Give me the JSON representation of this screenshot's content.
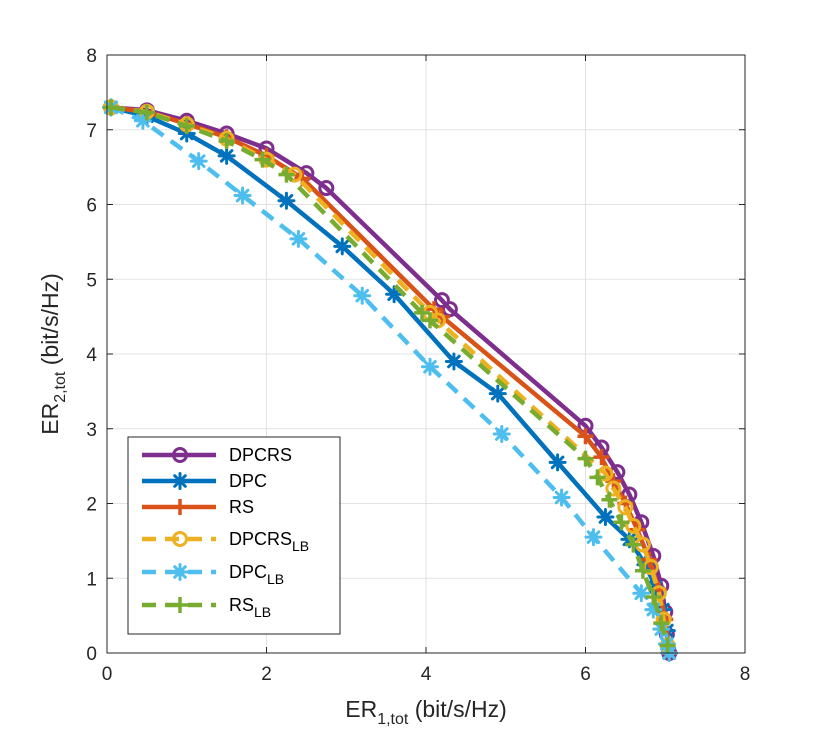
{
  "chart_data": {
    "type": "line",
    "title": "",
    "xlabel": {
      "main": "ER",
      "sub": "1,tot",
      "unit": " (bit/s/Hz)"
    },
    "ylabel": {
      "main": "ER",
      "sub": "2,tot",
      "unit": " (bit/s/Hz)"
    },
    "xlim": [
      0,
      8
    ],
    "ylim": [
      0,
      8
    ],
    "xticks": [
      "0",
      "2",
      "4",
      "6",
      "8"
    ],
    "yticks": [
      "0",
      "1",
      "2",
      "3",
      "4",
      "5",
      "6",
      "7",
      "8"
    ],
    "grid": true,
    "legend_position": "bottom-left",
    "series": [
      {
        "name": "DPCRS",
        "name_sub": "",
        "color": "#7E2F8E",
        "dashed": false,
        "marker": "circle",
        "x": [
          0.05,
          0.5,
          1.0,
          1.5,
          2.0,
          2.5,
          2.75,
          4.2,
          4.3,
          6.0,
          6.2,
          6.4,
          6.55,
          6.7,
          6.85,
          6.95,
          7.0,
          7.02,
          7.05
        ],
        "y": [
          7.3,
          7.26,
          7.12,
          6.95,
          6.75,
          6.42,
          6.22,
          4.72,
          4.6,
          3.04,
          2.75,
          2.42,
          2.12,
          1.75,
          1.3,
          0.9,
          0.55,
          0.25,
          0.0
        ]
      },
      {
        "name": "DPC",
        "name_sub": "",
        "color": "#0072BD",
        "dashed": false,
        "marker": "asterisk",
        "x": [
          0.05,
          0.5,
          1.0,
          1.5,
          2.25,
          2.95,
          3.6,
          4.35,
          4.9,
          5.65,
          6.25,
          6.55,
          6.75,
          6.88,
          6.97,
          7.02,
          7.05
        ],
        "y": [
          7.3,
          7.18,
          6.95,
          6.65,
          6.05,
          5.44,
          4.8,
          3.9,
          3.47,
          2.55,
          1.82,
          1.52,
          1.18,
          0.88,
          0.58,
          0.3,
          0.0
        ]
      },
      {
        "name": "RS",
        "name_sub": "",
        "color": "#D95319",
        "dashed": false,
        "marker": "plus",
        "x": [
          0.05,
          0.5,
          1.0,
          1.5,
          2.0,
          2.45,
          4.1,
          4.2,
          6.0,
          6.2,
          6.35,
          6.5,
          6.65,
          6.8,
          6.92,
          7.0,
          7.05
        ],
        "y": [
          7.3,
          7.24,
          7.08,
          6.9,
          6.65,
          6.35,
          4.6,
          4.5,
          2.9,
          2.62,
          2.3,
          2.0,
          1.65,
          1.25,
          0.85,
          0.45,
          0.0
        ]
      },
      {
        "name": "DPCRS",
        "name_sub": "LB",
        "color": "#EDB120",
        "dashed": true,
        "marker": "circle",
        "x": [
          0.05,
          0.5,
          1.0,
          1.5,
          2.0,
          2.35,
          4.05,
          4.15,
          6.25,
          6.35,
          6.5,
          6.6,
          6.72,
          6.82,
          6.92,
          6.98,
          7.03
        ],
        "y": [
          7.3,
          7.24,
          7.07,
          6.88,
          6.6,
          6.4,
          4.55,
          4.45,
          2.4,
          2.2,
          1.95,
          1.7,
          1.45,
          1.15,
          0.8,
          0.45,
          0.1
        ]
      },
      {
        "name": "DPC",
        "name_sub": "LB",
        "color": "#4DBEEE",
        "dashed": true,
        "marker": "asterisk",
        "x": [
          0.05,
          0.45,
          1.15,
          1.7,
          2.4,
          3.2,
          4.05,
          4.95,
          5.7,
          6.1,
          6.7,
          6.85,
          6.95,
          7.02,
          7.05
        ],
        "y": [
          7.3,
          7.12,
          6.58,
          6.12,
          5.54,
          4.78,
          3.83,
          2.93,
          2.08,
          1.55,
          0.8,
          0.58,
          0.32,
          0.12,
          0.0
        ]
      },
      {
        "name": "RS",
        "name_sub": "LB",
        "color": "#77AC30",
        "dashed": true,
        "marker": "plus",
        "x": [
          0.05,
          0.5,
          1.0,
          1.5,
          1.95,
          2.25,
          3.95,
          4.05,
          6.0,
          6.15,
          6.3,
          6.45,
          6.6,
          6.72,
          6.85,
          6.95,
          7.03
        ],
        "y": [
          7.3,
          7.23,
          7.05,
          6.85,
          6.6,
          6.4,
          4.55,
          4.45,
          2.6,
          2.35,
          2.05,
          1.75,
          1.45,
          1.1,
          0.75,
          0.4,
          0.1
        ]
      }
    ]
  }
}
